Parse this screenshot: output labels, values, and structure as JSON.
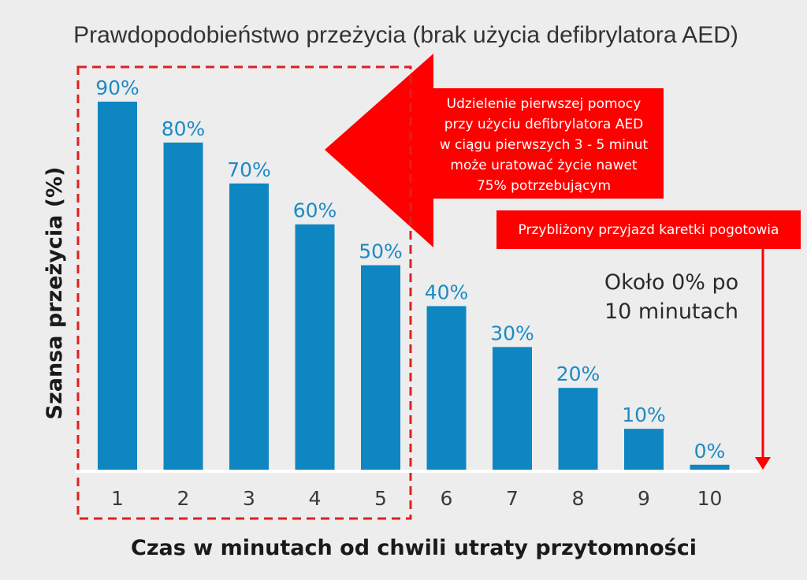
{
  "colors": {
    "background": "#ededed",
    "bar": "#0e86c1",
    "bar_label": "#1d8ac4",
    "callout_red": "#ff0000",
    "highlight_dash": "#e02020",
    "baseline": "#ffffff"
  },
  "chart_data": {
    "type": "bar",
    "title": "Prawdopodobieństwo przeżycia (brak użycia defibrylatora AED)",
    "xlabel": "Czas w minutach od chwili utraty przytomności",
    "ylabel": "Szansa przeżycia (%)",
    "categories": [
      "1",
      "2",
      "3",
      "4",
      "5",
      "6",
      "7",
      "8",
      "9",
      "10"
    ],
    "values": [
      90,
      80,
      70,
      60,
      50,
      40,
      30,
      20,
      10,
      0
    ],
    "value_labels": [
      "90%",
      "80%",
      "70%",
      "60%",
      "50%",
      "40%",
      "30%",
      "20%",
      "10%",
      "0%"
    ],
    "ylim": [
      0,
      90
    ],
    "zero_bar_display_value": 1.2,
    "grid": false,
    "highlight_range": {
      "from": 1,
      "to": 5
    }
  },
  "annotations": {
    "aed_callout_lines": [
      "Udzielenie pierwszej pomocy",
      "przy użyciu defibrylatora AED",
      "w ciągu pierwszych 3 - 5 minut",
      "może uratować życie nawet",
      "75% potrzebującym"
    ],
    "ambulance_label": "Przybliżony przyjazd karetki pogotowia",
    "note_lines": [
      "Około 0% po",
      "10 minutach"
    ]
  }
}
